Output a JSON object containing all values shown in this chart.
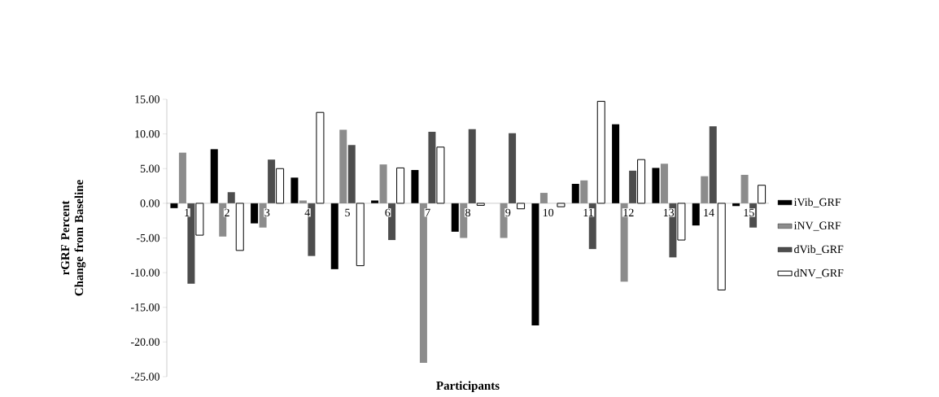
{
  "chart_data": {
    "type": "bar",
    "xlabel": "Participants",
    "ylabel": "rGRF Percent Change from Baseline",
    "categories": [
      "1",
      "2",
      "3",
      "4",
      "5",
      "6",
      "7",
      "8",
      "9",
      "10",
      "11",
      "12",
      "13",
      "14",
      "15"
    ],
    "series": [
      {
        "name": "iVib_GRF",
        "color": "#000000",
        "values": [
          -0.7,
          7.8,
          -2.9,
          3.7,
          -9.5,
          0.4,
          4.8,
          -4.1,
          0,
          -17.6,
          2.8,
          11.4,
          5.1,
          -3.2,
          -0.4
        ]
      },
      {
        "name": "iNV_GRF",
        "color": "#8c8c8c",
        "values": [
          7.3,
          -4.8,
          -3.5,
          0.4,
          10.6,
          5.6,
          -23,
          -5,
          -5,
          1.5,
          3.3,
          -11.3,
          5.7,
          3.9,
          4.1
        ]
      },
      {
        "name": "dVib_GRF",
        "color": "#4d4d4d",
        "values": [
          -11.6,
          1.6,
          6.3,
          -7.6,
          8.4,
          -5.3,
          10.3,
          10.7,
          10.1,
          null,
          -6.6,
          4.7,
          -7.8,
          11.1,
          -3.5
        ]
      },
      {
        "name": "dNV_GRF",
        "color": "#ffffff",
        "values": [
          -4.6,
          -6.8,
          5.0,
          13.1,
          -9.0,
          5.1,
          8.1,
          -0.3,
          -0.8,
          -0.5,
          14.7,
          6.3,
          -5.3,
          -12.5,
          2.6
        ]
      }
    ],
    "ylim": [
      -25,
      15
    ],
    "yticks": [
      {
        "value": -25,
        "label": "-25.00"
      },
      {
        "value": -20,
        "label": "-20.00"
      },
      {
        "value": -15,
        "label": "-15.00"
      },
      {
        "value": -10,
        "label": "-10.00"
      },
      {
        "value": -5,
        "label": "-5.00"
      },
      {
        "value": 0,
        "label": "0.00"
      },
      {
        "value": 5,
        "label": "5.00"
      },
      {
        "value": 10,
        "label": "10.00"
      },
      {
        "value": 15,
        "label": "15.00"
      }
    ],
    "legend": "right",
    "grid": false
  }
}
